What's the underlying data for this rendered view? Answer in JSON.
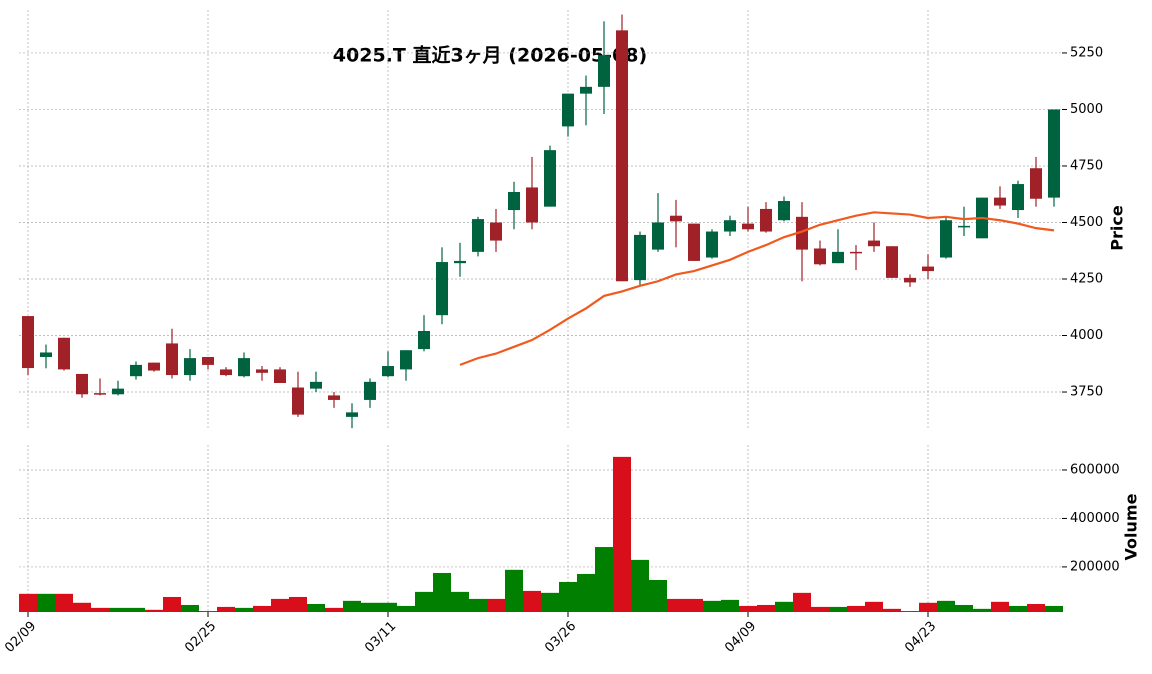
{
  "chart_data": [
    {
      "type": "candlestick",
      "title": "4025.T 直近3ヶ月 (2026-05-08)",
      "ylabel": "Price",
      "up_color": "#006340",
      "down_color": "#a02128",
      "open": [
        4086,
        3905,
        3990,
        3830,
        3745,
        3740,
        3820,
        3880,
        3965,
        3825,
        3905,
        3850,
        3820,
        3850,
        3850,
        3770,
        3765,
        3735,
        3640,
        3715,
        3820,
        3850,
        3940,
        4090,
        4320,
        4370,
        4500,
        4555,
        4655,
        4570,
        4925,
        5070,
        5100,
        5350,
        4245,
        4380,
        4530,
        4495,
        4345,
        4460,
        4495,
        4560,
        4510,
        4525,
        4385,
        4320,
        4370,
        4420,
        4395,
        4255,
        4305,
        4345,
        4480,
        4430,
        4610,
        4555,
        4740,
        4610
      ],
      "high": [
        4086,
        3960,
        3990,
        3830,
        3810,
        3800,
        3885,
        3880,
        4030,
        3940,
        3905,
        3860,
        3925,
        3865,
        3860,
        3840,
        3840,
        3750,
        3700,
        3810,
        3930,
        3935,
        4090,
        4390,
        4410,
        4525,
        4560,
        4680,
        4790,
        4840,
        5070,
        5150,
        5390,
        5420,
        4460,
        4630,
        4600,
        4495,
        4470,
        4530,
        4570,
        4590,
        4615,
        4590,
        4420,
        4470,
        4400,
        4500,
        4395,
        4270,
        4360,
        4520,
        4570,
        4610,
        4660,
        4685,
        4790,
        5000
      ],
      "low": [
        3825,
        3855,
        3845,
        3725,
        3735,
        3735,
        3805,
        3840,
        3810,
        3800,
        3850,
        3820,
        3815,
        3800,
        3790,
        3640,
        3750,
        3680,
        3590,
        3680,
        3815,
        3800,
        3930,
        4050,
        4260,
        4350,
        4370,
        4470,
        4470,
        4570,
        4880,
        4930,
        4980,
        4240,
        4220,
        4370,
        4390,
        4330,
        4340,
        4440,
        4460,
        4455,
        4505,
        4240,
        4310,
        4320,
        4290,
        4370,
        4255,
        4215,
        4250,
        4340,
        4440,
        4430,
        4560,
        4520,
        4570,
        4570
      ],
      "close": [
        3856,
        3925,
        3850,
        3740,
        3740,
        3765,
        3870,
        3845,
        3825,
        3900,
        3870,
        3825,
        3900,
        3835,
        3790,
        3650,
        3795,
        3715,
        3660,
        3795,
        3865,
        3935,
        4020,
        4325,
        4330,
        4515,
        4420,
        4635,
        4500,
        4820,
        5070,
        5100,
        5240,
        4240,
        4445,
        4500,
        4505,
        4330,
        4460,
        4510,
        4470,
        4460,
        4595,
        4380,
        4315,
        4370,
        4365,
        4395,
        4255,
        4235,
        4285,
        4510,
        4485,
        4610,
        4575,
        4670,
        4605,
        5000
      ],
      "ma": {
        "color": "#f05a1e",
        "values": [
          null,
          null,
          null,
          null,
          null,
          null,
          null,
          null,
          null,
          null,
          null,
          null,
          null,
          null,
          null,
          null,
          null,
          null,
          null,
          null,
          null,
          null,
          null,
          null,
          3870,
          3900,
          3920,
          3950,
          3980,
          4025,
          4075,
          4120,
          4175,
          4195,
          4220,
          4240,
          4270,
          4285,
          4310,
          4335,
          4370,
          4400,
          4435,
          4460,
          4490,
          4510,
          4530,
          4545,
          4540,
          4535,
          4520,
          4525,
          4515,
          4520,
          4510,
          4495,
          4475,
          4465
        ]
      },
      "ylim": [
        3582,
        5440
      ],
      "yticks": [
        3750,
        4000,
        4250,
        4500,
        4750,
        5000,
        5250
      ],
      "grid": true
    },
    {
      "type": "bar",
      "ylabel": "Volume",
      "up_color": "#007f00",
      "down_color": "#d80f1a",
      "categories": [
        "02/09",
        null,
        null,
        null,
        null,
        null,
        null,
        null,
        null,
        null,
        "02/25",
        null,
        null,
        null,
        null,
        null,
        null,
        null,
        null,
        null,
        "03/11",
        null,
        null,
        null,
        null,
        null,
        null,
        null,
        null,
        null,
        "03/26",
        null,
        null,
        null,
        null,
        null,
        null,
        null,
        null,
        null,
        "04/09",
        null,
        null,
        null,
        null,
        null,
        null,
        null,
        null,
        null,
        "04/23",
        null,
        null,
        null,
        null,
        null,
        null,
        null
      ],
      "values": [
        89000,
        89000,
        89000,
        52000,
        31000,
        31000,
        31000,
        23000,
        76000,
        43000,
        18000,
        35000,
        31000,
        39000,
        68000,
        76000,
        47000,
        31000,
        60000,
        52000,
        52000,
        39000,
        97000,
        175000,
        97000,
        68000,
        68000,
        188000,
        101000,
        93000,
        138000,
        171000,
        282000,
        654000,
        229000,
        146000,
        68000,
        68000,
        60000,
        64000,
        39000,
        43000,
        56000,
        93000,
        35000,
        35000,
        39000,
        56000,
        27000,
        18000,
        52000,
        60000,
        43000,
        27000,
        56000,
        39000,
        47000,
        39000
      ],
      "ylim": [
        14000,
        703000
      ],
      "yticks": [
        200000,
        400000,
        600000
      ],
      "grid": true
    }
  ]
}
